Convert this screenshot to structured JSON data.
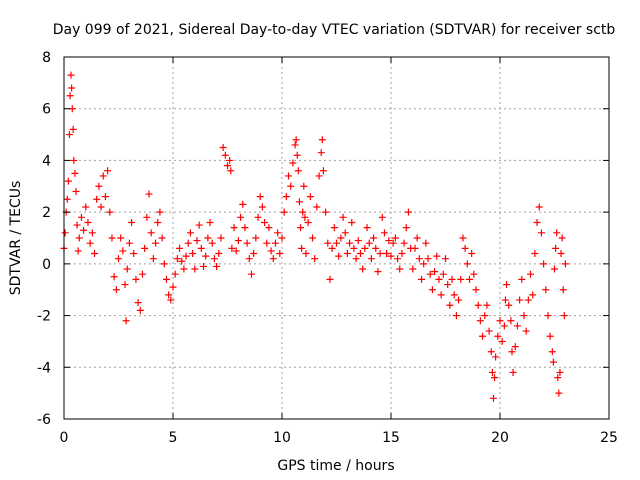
{
  "chart_data": {
    "type": "scatter",
    "title": "Day 099 of 2021, Sidereal Day-to-day VTEC variation (SDTVAR) for receiver sctb",
    "xlabel": "GPS time / hours",
    "ylabel": "SDTVAR / TECUs",
    "xlim": [
      0,
      25
    ],
    "ylim": [
      -6,
      8
    ],
    "xticks": [
      0,
      5,
      10,
      15,
      20,
      25
    ],
    "yticks": [
      -6,
      -4,
      -2,
      0,
      2,
      4,
      6,
      8
    ],
    "grid": true,
    "marker": "+",
    "color": "#ff0000",
    "series": [
      {
        "name": "SDTVAR",
        "points": [
          [
            0.0,
            0.6
          ],
          [
            0.05,
            1.2
          ],
          [
            0.1,
            2.0
          ],
          [
            0.15,
            2.5
          ],
          [
            0.2,
            3.2
          ],
          [
            0.25,
            5.0
          ],
          [
            0.28,
            6.5
          ],
          [
            0.32,
            7.3
          ],
          [
            0.35,
            6.8
          ],
          [
            0.38,
            6.0
          ],
          [
            0.42,
            5.2
          ],
          [
            0.45,
            4.0
          ],
          [
            0.5,
            3.5
          ],
          [
            0.55,
            2.8
          ],
          [
            0.6,
            1.5
          ],
          [
            0.65,
            0.5
          ],
          [
            0.7,
            1.0
          ],
          [
            0.8,
            1.8
          ],
          [
            0.9,
            1.3
          ],
          [
            1.0,
            2.2
          ],
          [
            1.1,
            1.6
          ],
          [
            1.2,
            0.8
          ],
          [
            1.3,
            1.2
          ],
          [
            1.4,
            0.4
          ],
          [
            1.5,
            2.5
          ],
          [
            1.6,
            3.0
          ],
          [
            1.7,
            2.2
          ],
          [
            1.8,
            3.4
          ],
          [
            1.9,
            2.6
          ],
          [
            2.0,
            3.6
          ],
          [
            2.1,
            2.0
          ],
          [
            2.2,
            1.0
          ],
          [
            2.3,
            -0.5
          ],
          [
            2.4,
            -1.0
          ],
          [
            2.5,
            0.2
          ],
          [
            2.6,
            1.0
          ],
          [
            2.7,
            0.5
          ],
          [
            2.8,
            -0.8
          ],
          [
            2.85,
            -2.2
          ],
          [
            2.9,
            -0.2
          ],
          [
            3.0,
            0.8
          ],
          [
            3.1,
            1.6
          ],
          [
            3.2,
            0.4
          ],
          [
            3.3,
            -0.6
          ],
          [
            3.4,
            -1.5
          ],
          [
            3.5,
            -1.8
          ],
          [
            3.6,
            -0.4
          ],
          [
            3.7,
            0.6
          ],
          [
            3.8,
            1.8
          ],
          [
            3.9,
            2.7
          ],
          [
            4.0,
            1.2
          ],
          [
            4.1,
            0.2
          ],
          [
            4.2,
            0.8
          ],
          [
            4.3,
            1.6
          ],
          [
            4.4,
            2.0
          ],
          [
            4.5,
            1.0
          ],
          [
            4.6,
            0.0
          ],
          [
            4.7,
            -0.6
          ],
          [
            4.8,
            -1.2
          ],
          [
            4.9,
            -1.4
          ],
          [
            5.0,
            -0.9
          ],
          [
            5.1,
            -0.4
          ],
          [
            5.2,
            0.2
          ],
          [
            5.3,
            0.6
          ],
          [
            5.4,
            0.1
          ],
          [
            5.5,
            -0.2
          ],
          [
            5.6,
            0.3
          ],
          [
            5.7,
            0.8
          ],
          [
            5.8,
            1.2
          ],
          [
            5.9,
            0.4
          ],
          [
            6.0,
            -0.2
          ],
          [
            6.1,
            0.9
          ],
          [
            6.2,
            1.5
          ],
          [
            6.3,
            0.6
          ],
          [
            6.4,
            -0.1
          ],
          [
            6.5,
            0.3
          ],
          [
            6.6,
            1.0
          ],
          [
            6.7,
            1.6
          ],
          [
            6.8,
            0.8
          ],
          [
            6.9,
            0.2
          ],
          [
            7.0,
            -0.1
          ],
          [
            7.1,
            0.4
          ],
          [
            7.2,
            1.0
          ],
          [
            7.3,
            4.5
          ],
          [
            7.4,
            4.2
          ],
          [
            7.5,
            3.8
          ],
          [
            7.6,
            4.0
          ],
          [
            7.65,
            3.6
          ],
          [
            7.7,
            0.6
          ],
          [
            7.8,
            1.4
          ],
          [
            7.9,
            0.5
          ],
          [
            8.0,
            0.9
          ],
          [
            8.1,
            1.8
          ],
          [
            8.2,
            2.3
          ],
          [
            8.3,
            1.4
          ],
          [
            8.4,
            0.8
          ],
          [
            8.5,
            0.2
          ],
          [
            8.6,
            -0.4
          ],
          [
            8.7,
            0.4
          ],
          [
            8.8,
            1.0
          ],
          [
            8.9,
            1.8
          ],
          [
            9.0,
            2.6
          ],
          [
            9.1,
            2.2
          ],
          [
            9.2,
            1.6
          ],
          [
            9.3,
            0.8
          ],
          [
            9.4,
            1.4
          ],
          [
            9.5,
            0.5
          ],
          [
            9.6,
            0.2
          ],
          [
            9.7,
            0.8
          ],
          [
            9.8,
            1.2
          ],
          [
            9.9,
            0.4
          ],
          [
            10.0,
            1.0
          ],
          [
            10.1,
            2.0
          ],
          [
            10.2,
            2.6
          ],
          [
            10.3,
            3.4
          ],
          [
            10.4,
            3.0
          ],
          [
            10.5,
            3.9
          ],
          [
            10.6,
            4.6
          ],
          [
            10.65,
            4.8
          ],
          [
            10.7,
            4.2
          ],
          [
            10.75,
            3.6
          ],
          [
            10.8,
            2.4
          ],
          [
            10.85,
            1.4
          ],
          [
            10.9,
            0.6
          ],
          [
            10.95,
            2.0
          ],
          [
            11.0,
            3.0
          ],
          [
            11.05,
            1.8
          ],
          [
            11.1,
            0.4
          ],
          [
            11.2,
            1.6
          ],
          [
            11.3,
            2.6
          ],
          [
            11.4,
            1.0
          ],
          [
            11.5,
            0.2
          ],
          [
            11.6,
            2.2
          ],
          [
            11.7,
            3.4
          ],
          [
            11.8,
            4.3
          ],
          [
            11.85,
            4.8
          ],
          [
            11.9,
            3.6
          ],
          [
            12.0,
            2.0
          ],
          [
            12.1,
            0.8
          ],
          [
            12.2,
            -0.6
          ],
          [
            12.3,
            0.6
          ],
          [
            12.4,
            1.4
          ],
          [
            12.5,
            0.8
          ],
          [
            12.6,
            0.3
          ],
          [
            12.7,
            1.0
          ],
          [
            12.8,
            1.8
          ],
          [
            12.9,
            1.2
          ],
          [
            13.0,
            0.4
          ],
          [
            13.1,
            0.8
          ],
          [
            13.2,
            1.6
          ],
          [
            13.3,
            0.6
          ],
          [
            13.4,
            0.2
          ],
          [
            13.5,
            0.9
          ],
          [
            13.6,
            0.4
          ],
          [
            13.7,
            -0.2
          ],
          [
            13.8,
            0.6
          ],
          [
            13.9,
            1.4
          ],
          [
            14.0,
            0.8
          ],
          [
            14.1,
            0.2
          ],
          [
            14.2,
            1.0
          ],
          [
            14.3,
            0.6
          ],
          [
            14.4,
            -0.3
          ],
          [
            14.5,
            0.4
          ],
          [
            14.6,
            1.8
          ],
          [
            14.7,
            1.2
          ],
          [
            14.8,
            0.4
          ],
          [
            14.9,
            0.9
          ],
          [
            15.0,
            0.3
          ],
          [
            15.1,
            0.8
          ],
          [
            15.2,
            1.0
          ],
          [
            15.3,
            0.2
          ],
          [
            15.4,
            -0.2
          ],
          [
            15.5,
            0.4
          ],
          [
            15.6,
            0.8
          ],
          [
            15.7,
            1.4
          ],
          [
            15.8,
            2.0
          ],
          [
            15.9,
            0.6
          ],
          [
            16.0,
            -0.2
          ],
          [
            16.1,
            0.6
          ],
          [
            16.2,
            1.0
          ],
          [
            16.3,
            0.2
          ],
          [
            16.4,
            -0.6
          ],
          [
            16.5,
            0.0
          ],
          [
            16.6,
            0.8
          ],
          [
            16.7,
            0.2
          ],
          [
            16.8,
            -0.4
          ],
          [
            16.9,
            -1.0
          ],
          [
            17.0,
            -0.3
          ],
          [
            17.1,
            0.3
          ],
          [
            17.2,
            -0.6
          ],
          [
            17.3,
            -1.2
          ],
          [
            17.4,
            -0.4
          ],
          [
            17.5,
            0.2
          ],
          [
            17.6,
            -0.8
          ],
          [
            17.7,
            -1.6
          ],
          [
            17.8,
            -0.6
          ],
          [
            17.9,
            -1.2
          ],
          [
            18.0,
            -2.0
          ],
          [
            18.1,
            -1.4
          ],
          [
            18.2,
            -0.6
          ],
          [
            18.3,
            1.0
          ],
          [
            18.4,
            0.6
          ],
          [
            18.5,
            0.0
          ],
          [
            18.6,
            -0.6
          ],
          [
            18.7,
            0.4
          ],
          [
            18.8,
            -0.4
          ],
          [
            18.9,
            -1.0
          ],
          [
            19.0,
            -1.6
          ],
          [
            19.1,
            -2.2
          ],
          [
            19.2,
            -2.8
          ],
          [
            19.3,
            -2.0
          ],
          [
            19.4,
            -1.6
          ],
          [
            19.5,
            -2.6
          ],
          [
            19.6,
            -3.4
          ],
          [
            19.65,
            -4.2
          ],
          [
            19.7,
            -5.2
          ],
          [
            19.75,
            -4.4
          ],
          [
            19.8,
            -3.6
          ],
          [
            19.9,
            -2.8
          ],
          [
            20.0,
            -2.2
          ],
          [
            20.1,
            -3.0
          ],
          [
            20.2,
            -2.4
          ],
          [
            20.25,
            -1.4
          ],
          [
            20.3,
            -0.8
          ],
          [
            20.4,
            -1.6
          ],
          [
            20.5,
            -2.2
          ],
          [
            20.55,
            -3.4
          ],
          [
            20.6,
            -4.2
          ],
          [
            20.7,
            -3.2
          ],
          [
            20.8,
            -2.4
          ],
          [
            20.9,
            -1.4
          ],
          [
            21.0,
            -0.6
          ],
          [
            21.1,
            -2.0
          ],
          [
            21.2,
            -2.6
          ],
          [
            21.3,
            -1.4
          ],
          [
            21.4,
            -0.4
          ],
          [
            21.5,
            -1.2
          ],
          [
            21.6,
            0.4
          ],
          [
            21.7,
            1.6
          ],
          [
            21.8,
            2.2
          ],
          [
            21.9,
            1.2
          ],
          [
            22.0,
            0.0
          ],
          [
            22.1,
            -1.0
          ],
          [
            22.2,
            -2.0
          ],
          [
            22.3,
            -2.8
          ],
          [
            22.4,
            -3.4
          ],
          [
            22.45,
            -3.8
          ],
          [
            22.5,
            -0.2
          ],
          [
            22.55,
            0.6
          ],
          [
            22.6,
            1.2
          ],
          [
            22.65,
            -4.4
          ],
          [
            22.7,
            -5.0
          ],
          [
            22.75,
            -4.2
          ],
          [
            22.8,
            0.4
          ],
          [
            22.85,
            1.0
          ],
          [
            22.9,
            -1.0
          ],
          [
            22.95,
            -2.0
          ],
          [
            23.0,
            0.0
          ]
        ]
      }
    ]
  }
}
